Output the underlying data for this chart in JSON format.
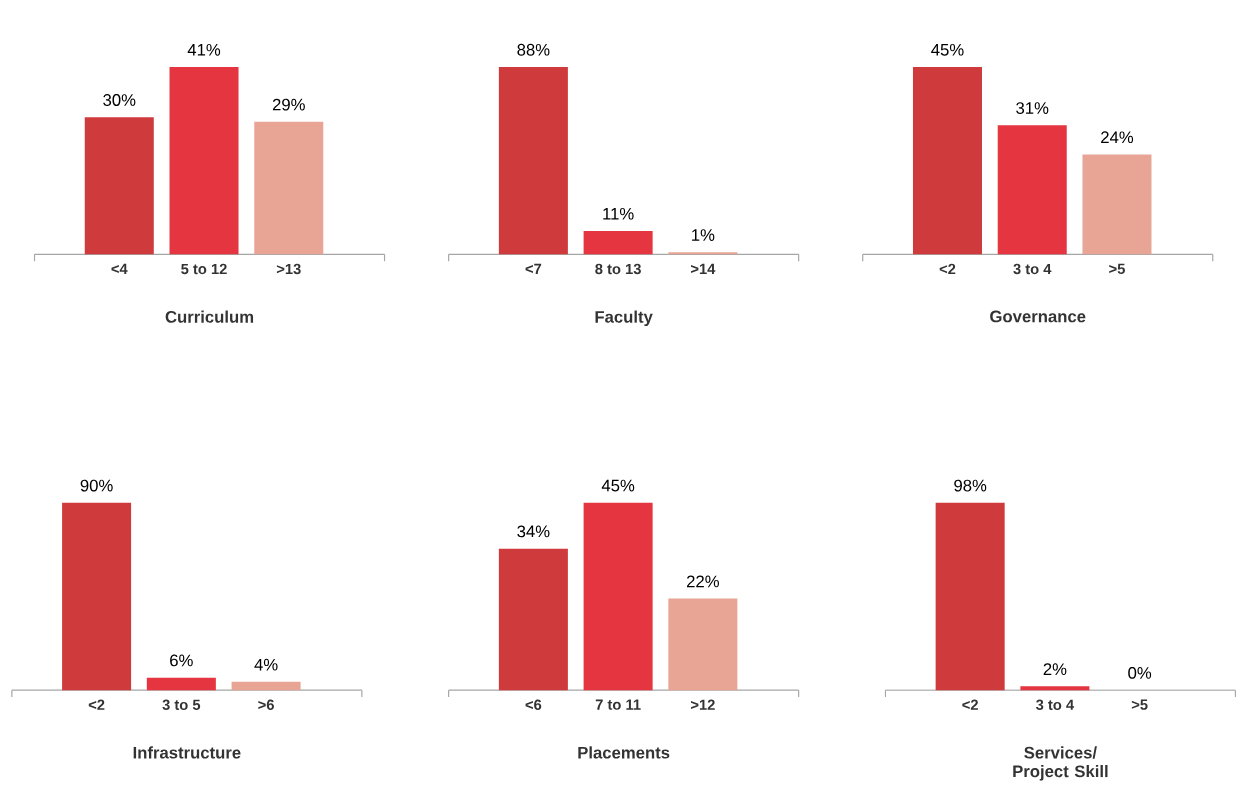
{
  "chart_data": [
    {
      "type": "bar",
      "xlabel": "Curriculum",
      "categories": [
        "<4",
        "5 to 12",
        ">13"
      ],
      "values": [
        30,
        41,
        29
      ],
      "value_labels": [
        "30%",
        "41%",
        "29%"
      ],
      "colors": [
        "#cf3a3c",
        "#e43540",
        "#e8a595"
      ]
    },
    {
      "type": "bar",
      "xlabel": "Faculty",
      "categories": [
        "<7",
        "8 to 13",
        ">14"
      ],
      "values": [
        88,
        11,
        1
      ],
      "value_labels": [
        "88%",
        "11%",
        "1%"
      ],
      "colors": [
        "#cf3a3c",
        "#e43540",
        "#e8a595"
      ]
    },
    {
      "type": "bar",
      "xlabel": "Governance",
      "categories": [
        "<2",
        "3 to 4",
        ">5"
      ],
      "values": [
        45,
        31,
        24
      ],
      "value_labels": [
        "45%",
        "31%",
        "24%"
      ],
      "colors": [
        "#cf3a3c",
        "#e43540",
        "#e8a595"
      ]
    },
    {
      "type": "bar",
      "xlabel": "Infrastructure",
      "categories": [
        "<2",
        "3 to 5",
        ">6"
      ],
      "values": [
        90,
        6,
        4
      ],
      "value_labels": [
        "90%",
        "6%",
        "4%"
      ],
      "colors": [
        "#cf3a3c",
        "#e43540",
        "#e8a595"
      ]
    },
    {
      "type": "bar",
      "xlabel": "Placements",
      "categories": [
        "<6",
        "7 to 11",
        ">12"
      ],
      "values": [
        34,
        45,
        22
      ],
      "value_labels": [
        "34%",
        "45%",
        "22%"
      ],
      "colors": [
        "#cf3a3c",
        "#e43540",
        "#e8a595"
      ]
    },
    {
      "type": "bar",
      "xlabel": "Services/ Project Skill",
      "categories": [
        "<2",
        "3 to 4",
        ">5"
      ],
      "values": [
        98,
        2,
        0
      ],
      "value_labels": [
        "98%",
        "2%",
        "0%"
      ],
      "colors": [
        "#cf3a3c",
        "#e43540",
        "#e8a595"
      ]
    }
  ]
}
